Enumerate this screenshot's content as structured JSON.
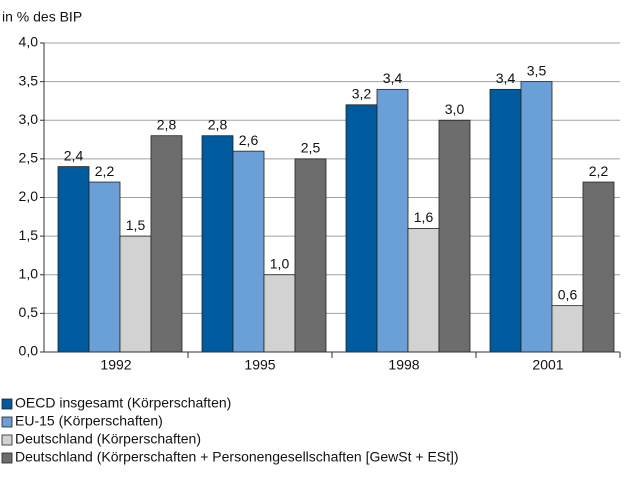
{
  "chart_data": {
    "type": "bar",
    "y_label": "in % des BIP",
    "categories": [
      "1992",
      "1995",
      "1998",
      "2001"
    ],
    "series": [
      {
        "name": "OECD insgesamt (Körperschaften)",
        "color": "#005a9e",
        "values": [
          2.4,
          2.8,
          3.2,
          3.4
        ],
        "value_labels": [
          "2,4",
          "2,8",
          "3,2",
          "3,4"
        ]
      },
      {
        "name": "EU-15 (Körperschaften)",
        "color": "#6a9fd8",
        "values": [
          2.2,
          2.6,
          3.4,
          3.5
        ],
        "value_labels": [
          "2,2",
          "2,6",
          "3,4",
          "3,5"
        ]
      },
      {
        "name": "Deutschland (Körperschaften)",
        "color": "#d2d2d2",
        "values": [
          1.5,
          1.0,
          1.6,
          0.6
        ],
        "value_labels": [
          "1,5",
          "1,0",
          "1,6",
          "0,6"
        ]
      },
      {
        "name": "Deutschland (Körperschaften + Personengesellschaften [GewSt + ESt])",
        "color": "#6d6d6d",
        "values": [
          2.8,
          2.5,
          3.0,
          2.2
        ],
        "value_labels": [
          "2,8",
          "2,5",
          "3,0",
          "2,2"
        ]
      }
    ],
    "ylim": [
      0,
      4
    ],
    "yticks": [
      {
        "value": 0,
        "label": "0,0"
      },
      {
        "value": 0.5,
        "label": "0,5"
      },
      {
        "value": 1,
        "label": "1,0"
      },
      {
        "value": 1.5,
        "label": "1,5"
      },
      {
        "value": 2,
        "label": "2,0"
      },
      {
        "value": 2.5,
        "label": "2,5"
      },
      {
        "value": 3,
        "label": "3,0"
      },
      {
        "value": 3.5,
        "label": "3,5"
      },
      {
        "value": 4,
        "label": "4,0"
      }
    ],
    "grid": true,
    "legend": "bottom"
  }
}
